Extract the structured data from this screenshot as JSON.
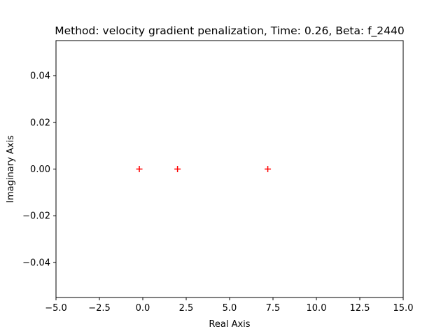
{
  "chart_data": {
    "type": "scatter",
    "title": "Method: velocity gradient penalization, Time: 0.26, Beta: f_2440",
    "xlabel": "Real Axis",
    "ylabel": "Imaginary Axis",
    "xlim": [
      -5.0,
      15.0
    ],
    "ylim": [
      -0.055,
      0.055
    ],
    "xticks": [
      -5.0,
      -2.5,
      0.0,
      2.5,
      5.0,
      7.5,
      10.0,
      12.5,
      15.0
    ],
    "xtick_labels": [
      "−5.0",
      "−2.5",
      "0.0",
      "2.5",
      "5.0",
      "7.5",
      "10.0",
      "12.5",
      "15.0"
    ],
    "yticks": [
      -0.04,
      -0.02,
      0.0,
      0.02,
      0.04
    ],
    "ytick_labels": [
      "−0.04",
      "−0.02",
      "0.00",
      "0.02",
      "0.04"
    ],
    "grid": false,
    "legend": "none",
    "series": [
      {
        "marker": "plus",
        "color": "#ff0000",
        "points": [
          {
            "x": -0.2,
            "y": 0.0
          },
          {
            "x": 2.0,
            "y": 0.0
          },
          {
            "x": 7.2,
            "y": 0.0
          }
        ]
      }
    ]
  }
}
